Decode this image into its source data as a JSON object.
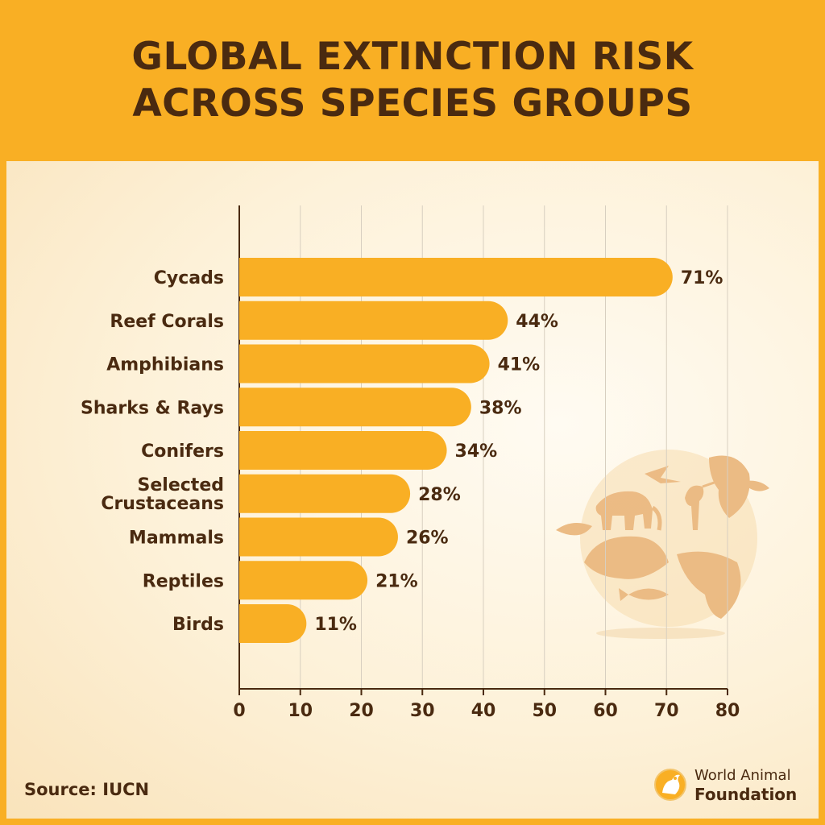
{
  "title": {
    "line1": "GLOBAL EXTINCTION RISK",
    "line2": "ACROSS SPECIES GROUPS"
  },
  "source": "Source: IUCN",
  "brand": {
    "line1": "World Animal",
    "line2": "Foundation"
  },
  "colors": {
    "bar": "#f9af24",
    "text": "#4a2a10",
    "grid": "#d8cfc0",
    "illustration": "#eab57a"
  },
  "icons": [
    "globe-wildlife-illustration",
    "world-animal-foundation-logo"
  ],
  "chart_data": {
    "type": "bar",
    "orientation": "horizontal",
    "categories": [
      "Cycads",
      "Reef Corals",
      "Amphibians",
      "Sharks & Rays",
      "Conifers",
      "Selected Crustaceans",
      "Mammals",
      "Reptiles",
      "Birds"
    ],
    "values": [
      71,
      44,
      41,
      38,
      34,
      28,
      26,
      21,
      11
    ],
    "value_labels": [
      "71%",
      "44%",
      "41%",
      "38%",
      "34%",
      "28%",
      "26%",
      "21%",
      "11%"
    ],
    "xlim": [
      0,
      80
    ],
    "xticks": [
      0,
      10,
      20,
      30,
      40,
      50,
      60,
      70,
      80
    ],
    "grid": true
  }
}
